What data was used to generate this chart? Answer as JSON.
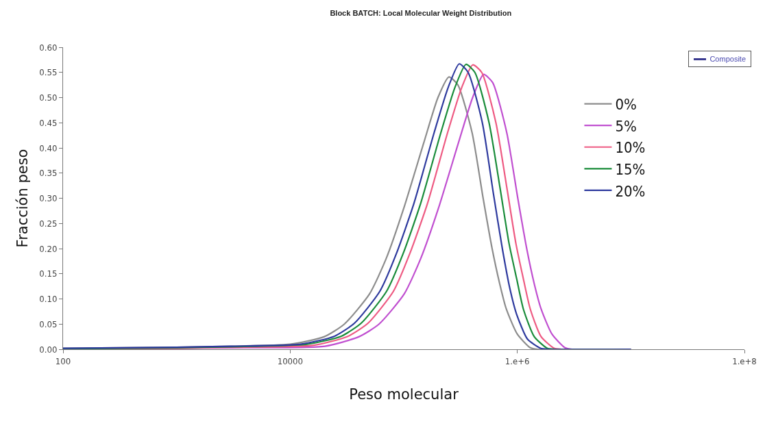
{
  "chart_data": {
    "type": "line",
    "title": "Block BATCH: Local Molecular Weight Distribution",
    "xlabel": "Peso molecular",
    "ylabel": "Fracción peso",
    "annotations": [
      "Composite"
    ],
    "log": "x",
    "grid": false,
    "legend": "top right",
    "marker": "none",
    "line_style": "solid",
    "xlim": [
      100,
      100000000
    ],
    "xticks": [
      100,
      10000,
      {
        "value": 1000000,
        "label": "1.e+6"
      },
      {
        "value": 100000000,
        "label": "1.e+8"
      }
    ],
    "ylim": [
      0,
      0.6
    ],
    "yticks": [
      {
        "value": 0,
        "label": "0.00"
      },
      {
        "value": 0.05,
        "label": "0.05"
      },
      {
        "value": 0.1,
        "label": "0.10"
      },
      {
        "value": 0.15,
        "label": "0.15"
      },
      {
        "value": 0.2,
        "label": "0.20"
      },
      {
        "value": 0.25,
        "label": "0.25"
      },
      {
        "value": 0.3,
        "label": "0.30"
      },
      {
        "value": 0.35,
        "label": "0.35"
      },
      {
        "value": 0.4,
        "label": "0.40"
      },
      {
        "value": 0.45,
        "label": "0.45"
      },
      {
        "value": 0.5,
        "label": "0.50"
      },
      {
        "value": 0.55,
        "label": "0.55"
      },
      {
        "value": 0.6,
        "label": "0.60"
      }
    ],
    "series": [
      {
        "name": "0%",
        "color": "#8c8c8c",
        "x": [
          100,
          1000,
          3000,
          10000,
          20000,
          30000,
          50000,
          70000,
          100000,
          150000,
          200000,
          250000,
          300000,
          400000,
          500000,
          600000,
          700000,
          800000,
          1000000,
          1300000,
          1500000,
          10000000
        ],
        "values": [
          0.002,
          0.004,
          0.006,
          0.01,
          0.025,
          0.05,
          0.11,
          0.18,
          0.28,
          0.41,
          0.5,
          0.541,
          0.525,
          0.43,
          0.3,
          0.2,
          0.13,
          0.08,
          0.03,
          0.003,
          0,
          0
        ]
      },
      {
        "name": "5%",
        "color": "#c04fd0",
        "x": [
          100,
          1000,
          3000,
          20200,
          40400,
          60600,
          101000,
          141000,
          202000,
          303000,
          404000,
          505000,
          606000,
          808000,
          1010000,
          1210000,
          1410000,
          1620000,
          2020000,
          2630000,
          3030000,
          10000000
        ],
        "values": [
          0.001,
          0.002,
          0.003,
          0.006,
          0.025,
          0.05,
          0.11,
          0.18,
          0.28,
          0.41,
          0.5,
          0.546,
          0.53,
          0.43,
          0.3,
          0.2,
          0.13,
          0.08,
          0.03,
          0.003,
          0,
          0
        ]
      },
      {
        "name": "10%",
        "color": "#ee5a82",
        "x": [
          100,
          1000,
          3000,
          16200,
          32400,
          48600,
          81000,
          113000,
          162000,
          243000,
          324000,
          405000,
          486000,
          648000,
          810000,
          972000,
          1130000,
          1300000,
          1620000,
          2110000,
          2430000,
          10000000
        ],
        "values": [
          0.001,
          0.002,
          0.004,
          0.008,
          0.026,
          0.052,
          0.115,
          0.19,
          0.29,
          0.43,
          0.52,
          0.565,
          0.55,
          0.45,
          0.32,
          0.21,
          0.14,
          0.08,
          0.025,
          0.002,
          0,
          0
        ]
      },
      {
        "name": "15%",
        "color": "#1a8c3a",
        "x": [
          100,
          1000,
          3000,
          14100,
          28200,
          42300,
          70500,
          98700,
          141000,
          212000,
          282000,
          353000,
          423000,
          564000,
          705000,
          846000,
          987000,
          1130000,
          1410000,
          1830000,
          2120000,
          10000000
        ],
        "values": [
          0.001,
          0.003,
          0.005,
          0.01,
          0.026,
          0.052,
          0.115,
          0.19,
          0.29,
          0.43,
          0.52,
          0.566,
          0.55,
          0.45,
          0.32,
          0.21,
          0.14,
          0.08,
          0.025,
          0.002,
          0,
          0
        ]
      },
      {
        "name": "20%",
        "color": "#2e3a9e",
        "x": [
          100,
          1000,
          3000,
          12300,
          24600,
          36900,
          61500,
          86100,
          123000,
          185000,
          246000,
          308000,
          369000,
          492000,
          615000,
          738000,
          861000,
          984000,
          1230000,
          1600000,
          1850000,
          10000000
        ],
        "values": [
          0.002,
          0.004,
          0.006,
          0.01,
          0.026,
          0.052,
          0.115,
          0.19,
          0.29,
          0.43,
          0.52,
          0.567,
          0.55,
          0.45,
          0.31,
          0.2,
          0.12,
          0.07,
          0.02,
          0.002,
          0,
          0
        ]
      }
    ]
  }
}
